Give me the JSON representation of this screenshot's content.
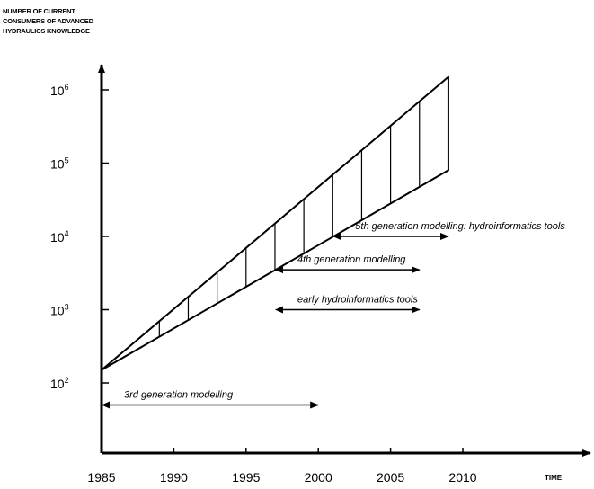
{
  "chart_data": {
    "type": "area",
    "ylabel": "NUMBER OF CURRENT\nCONSUMERS OF ADVANCED\nHYDRAULICS KNOWLEDGE",
    "xlabel": "TIME",
    "x_ticks": [
      "1985",
      "1990",
      "1995",
      "2000",
      "2005",
      "2010"
    ],
    "y_ticks": [
      {
        "base": "10",
        "exp": "2"
      },
      {
        "base": "10",
        "exp": "3"
      },
      {
        "base": "10",
        "exp": "4"
      },
      {
        "base": "10",
        "exp": "5"
      },
      {
        "base": "10",
        "exp": "6"
      }
    ],
    "y_scale": "log",
    "xlim": [
      1985,
      2010
    ],
    "ylim": [
      100,
      1000000
    ],
    "band": {
      "x": [
        1985,
        2009
      ],
      "upper": [
        150,
        1500000
      ],
      "lower": [
        150,
        80000
      ],
      "hatch_x": [
        1989,
        1991,
        1993,
        1995,
        1997,
        1999,
        2001,
        2003,
        2005,
        2007,
        2009
      ]
    },
    "annotations": [
      {
        "id": "gen5",
        "text": "5th generation modelling: hydroinformatics tools",
        "x_start": 2001,
        "x_end": 2009,
        "y_level": 10000
      },
      {
        "id": "gen4",
        "text": "4th generation modelling",
        "x_start": 1997,
        "x_end": 2007,
        "y_level": 3500
      },
      {
        "id": "tools",
        "text": "early hydroinformatics tools",
        "x_start": 1997,
        "x_end": 2007,
        "y_level": 1000
      },
      {
        "id": "gen3",
        "text": "3rd generation modelling",
        "x_start": 1985,
        "x_end": 2000,
        "y_level": 50
      }
    ]
  }
}
